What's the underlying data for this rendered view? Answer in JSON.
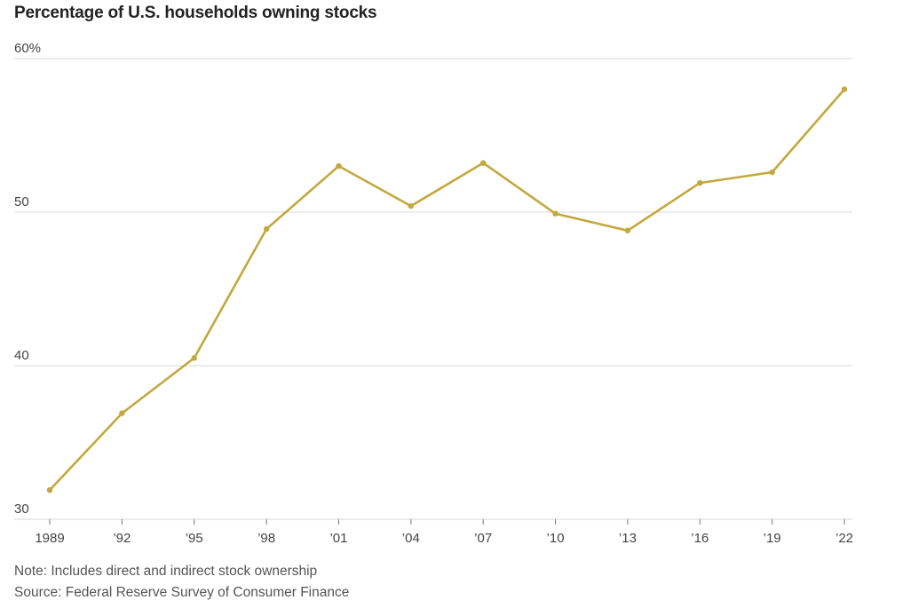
{
  "title": "Percentage of U.S. households owning stocks",
  "note": "Note: Includes direct and indirect stock ownership",
  "source": "Source: Federal Reserve Survey of Consumer Finance",
  "colors": {
    "line": "#c2a83e",
    "grid": "#d9d9d9",
    "axis": "#777777"
  },
  "chart_data": {
    "type": "line",
    "title": "Percentage of U.S. households owning stocks",
    "xlabel": "",
    "ylabel": "",
    "ylim": [
      30,
      60
    ],
    "yticks": [
      {
        "value": 60,
        "label": "60%"
      },
      {
        "value": 50,
        "label": "50"
      },
      {
        "value": 40,
        "label": "40"
      },
      {
        "value": 30,
        "label": "30"
      }
    ],
    "grid": true,
    "categories": [
      "1989",
      "’92",
      "’95",
      "’98",
      "’01",
      "’04",
      "’07",
      "’10",
      "’13",
      "’16",
      "’19",
      "’22"
    ],
    "x": [
      1989,
      1992,
      1995,
      1998,
      2001,
      2004,
      2007,
      2010,
      2013,
      2016,
      2019,
      2022
    ],
    "series": [
      {
        "values": [
          31.9,
          36.9,
          40.5,
          48.9,
          53.0,
          50.4,
          53.2,
          49.9,
          48.8,
          51.9,
          52.6,
          58.0
        ]
      }
    ]
  }
}
